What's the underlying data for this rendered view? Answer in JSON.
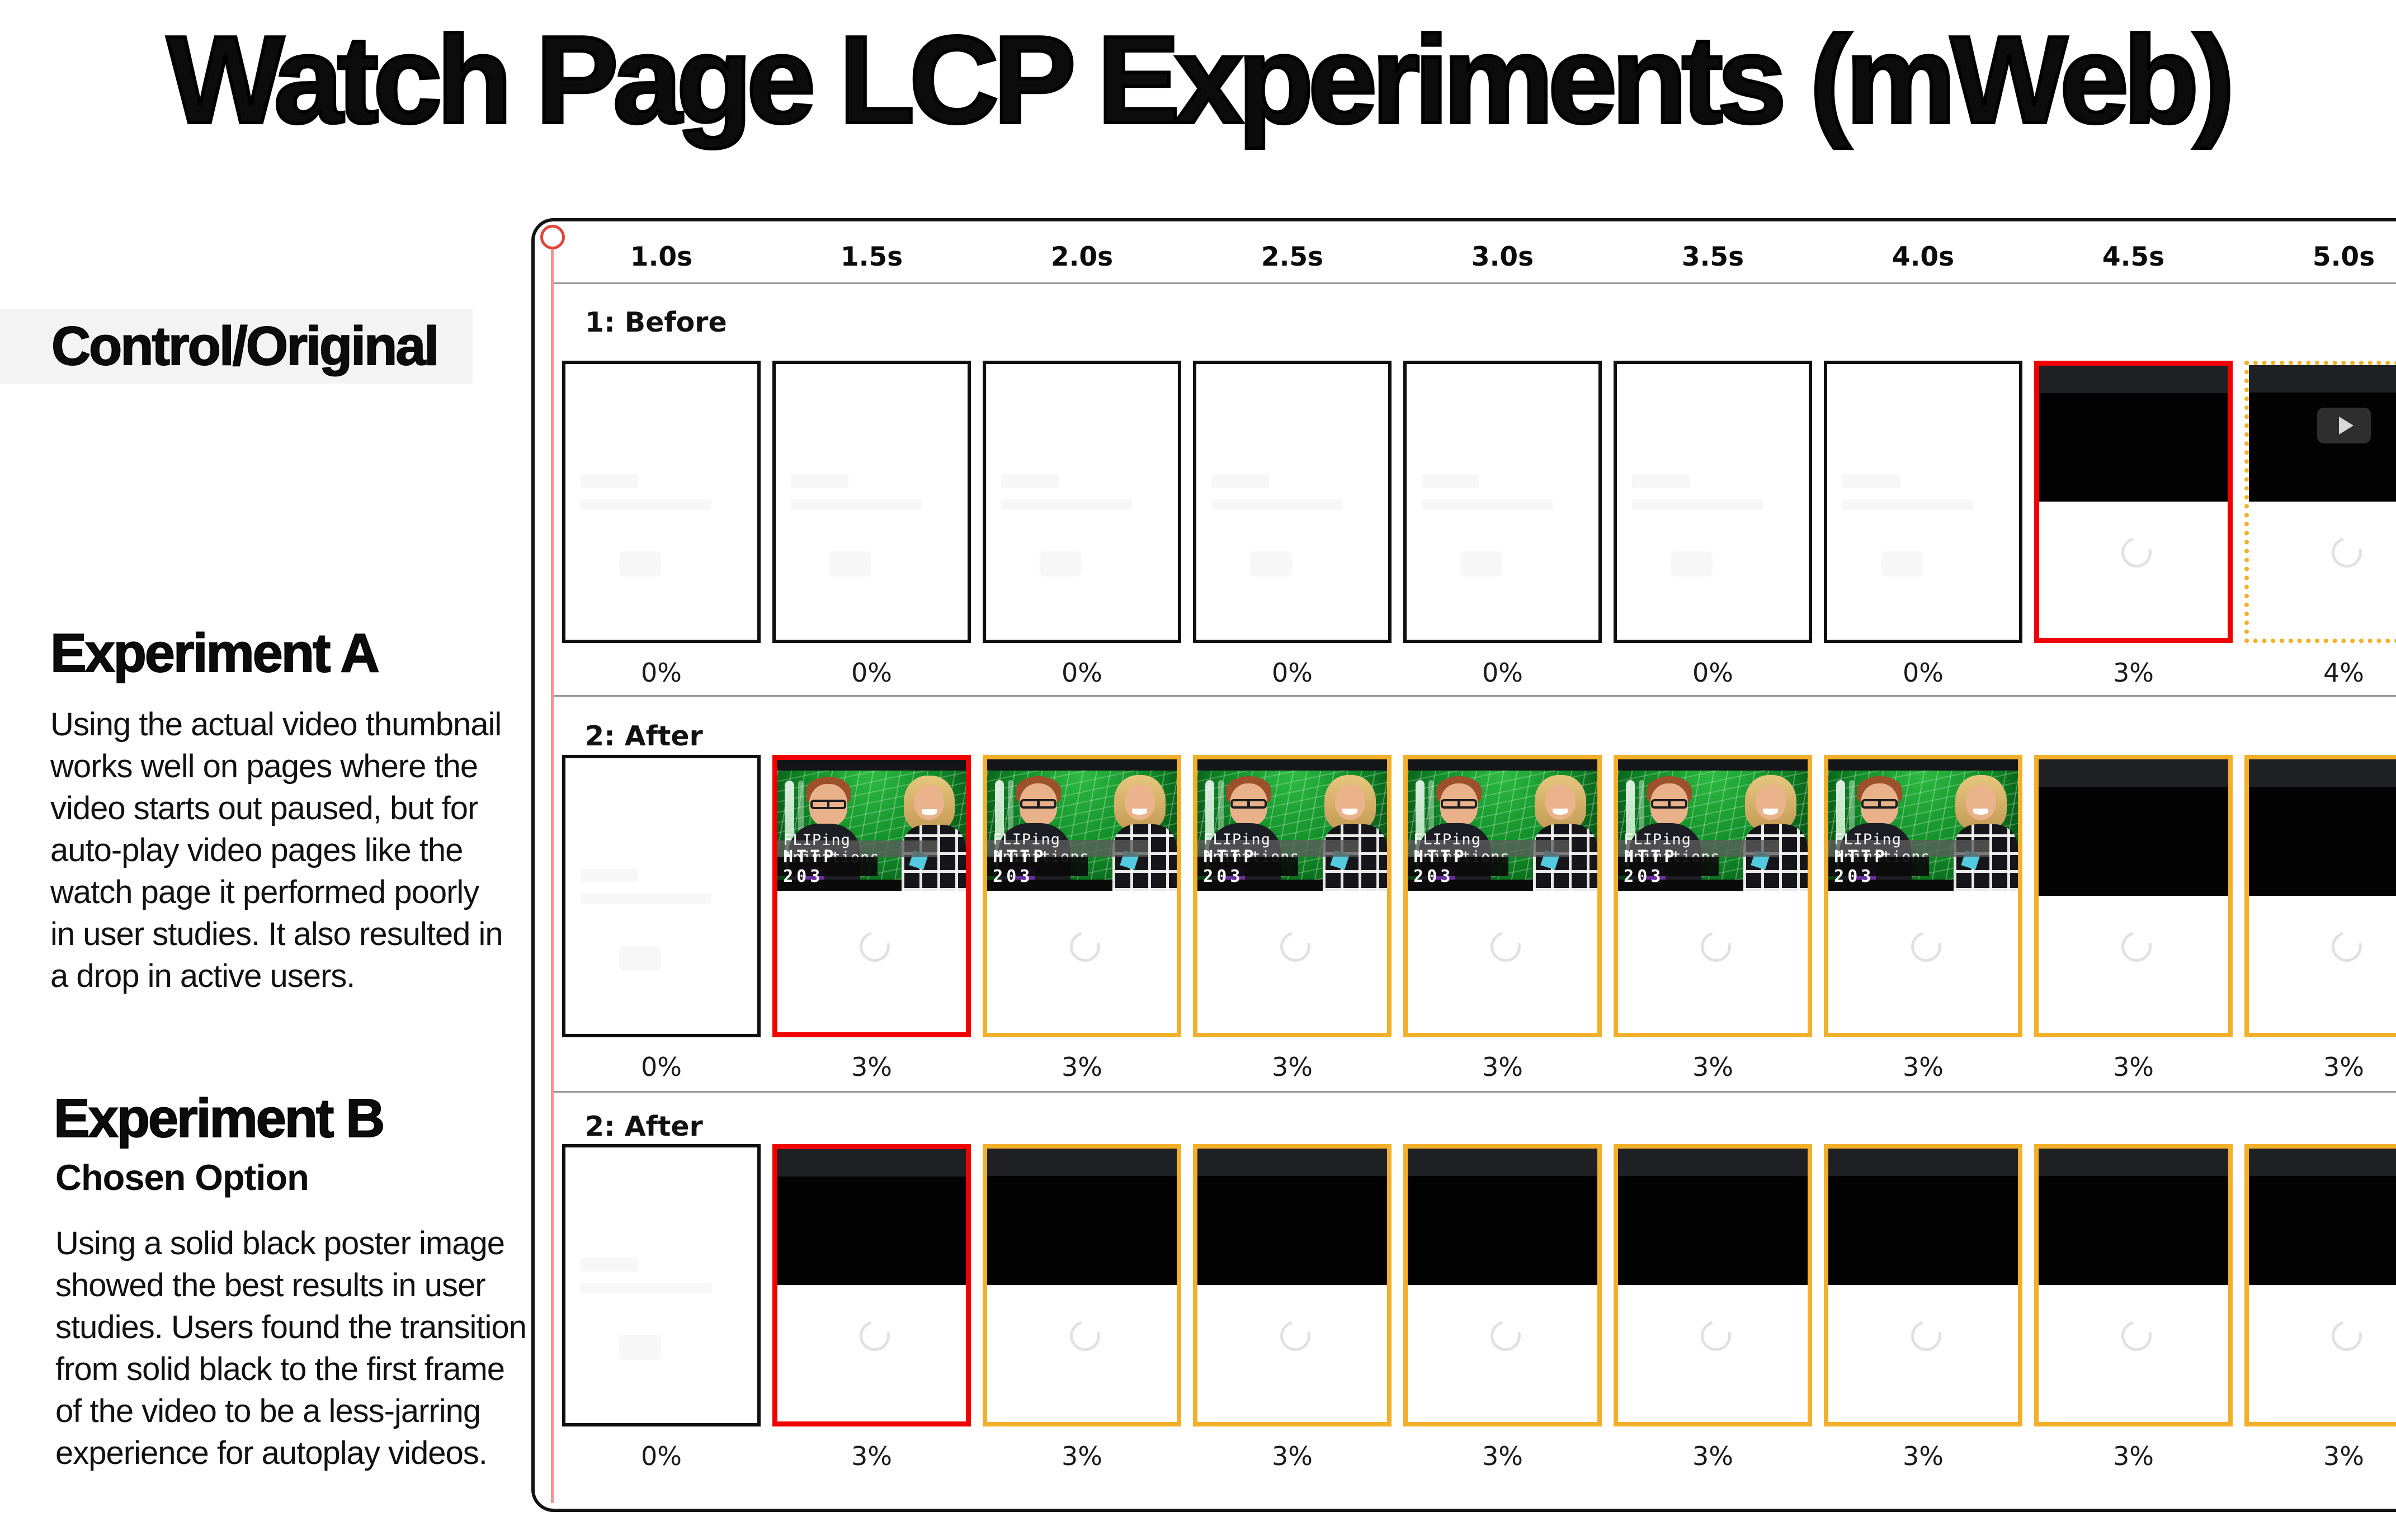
{
  "title": "Watch Page LCP Experiments (mWeb)",
  "left_column": {
    "control_heading": "Control/Original",
    "experiment_a": {
      "heading": "Experiment A",
      "body": "Using the actual video thumbnail works well on pages where the video starts out paused, but for auto-play video pages like the watch page it performed poorly in user studies. It also resulted in a drop in active users."
    },
    "experiment_b": {
      "heading": "Experiment B",
      "subheading": "Chosen Option",
      "body": "Using a solid black poster image showed the best results in user studies. Users found the transition from solid black to the first frame of the video to be a less-jarring experience for autoplay videos."
    }
  },
  "timeline": {
    "times": [
      "1.0s",
      "1.5s",
      "2.0s",
      "2.5s",
      "3.0s",
      "3.5s",
      "4.0s",
      "4.5s",
      "5.0s"
    ],
    "rows": [
      {
        "label": "1: Before",
        "cells": [
          {
            "type": "blank",
            "border": "black",
            "pct": "0%"
          },
          {
            "type": "blank",
            "border": "black",
            "pct": "0%"
          },
          {
            "type": "blank",
            "border": "black",
            "pct": "0%"
          },
          {
            "type": "blank",
            "border": "black",
            "pct": "0%"
          },
          {
            "type": "blank",
            "border": "black",
            "pct": "0%"
          },
          {
            "type": "blank",
            "border": "black",
            "pct": "0%"
          },
          {
            "type": "blank",
            "border": "black",
            "pct": "0%"
          },
          {
            "type": "black",
            "border": "red",
            "pct": "3%"
          },
          {
            "type": "black-play",
            "border": "dotted",
            "pct": "4%"
          }
        ]
      },
      {
        "label": "2: After",
        "cells": [
          {
            "type": "blank",
            "border": "black",
            "pct": "0%"
          },
          {
            "type": "thumb",
            "border": "red",
            "pct": "3%"
          },
          {
            "type": "thumb",
            "border": "yellow",
            "pct": "3%"
          },
          {
            "type": "thumb",
            "border": "yellow",
            "pct": "3%"
          },
          {
            "type": "thumb",
            "border": "yellow",
            "pct": "3%"
          },
          {
            "type": "thumb",
            "border": "yellow",
            "pct": "3%"
          },
          {
            "type": "thumb",
            "border": "yellow",
            "pct": "3%"
          },
          {
            "type": "black",
            "border": "yellow",
            "pct": "3%"
          },
          {
            "type": "black",
            "border": "yellow",
            "pct": "3%"
          }
        ]
      },
      {
        "label": "2: After",
        "cells": [
          {
            "type": "blank",
            "border": "black",
            "pct": "0%"
          },
          {
            "type": "black",
            "border": "red",
            "pct": "3%"
          },
          {
            "type": "black",
            "border": "yellow",
            "pct": "3%"
          },
          {
            "type": "black",
            "border": "yellow",
            "pct": "3%"
          },
          {
            "type": "black",
            "border": "yellow",
            "pct": "3%"
          },
          {
            "type": "black",
            "border": "yellow",
            "pct": "3%"
          },
          {
            "type": "black",
            "border": "yellow",
            "pct": "3%"
          },
          {
            "type": "black",
            "border": "yellow",
            "pct": "3%"
          },
          {
            "type": "black",
            "border": "yellow",
            "pct": "3%"
          }
        ]
      }
    ]
  },
  "thumbnail": {
    "title_text": "FLIPing Animations",
    "show_text": "HTTP 203"
  },
  "colors": {
    "highlight_red": "#F20000",
    "highlight_yellow": "#F2B02A",
    "playhead_red": "#E2443A",
    "frame_black": "#0F0F0F"
  }
}
